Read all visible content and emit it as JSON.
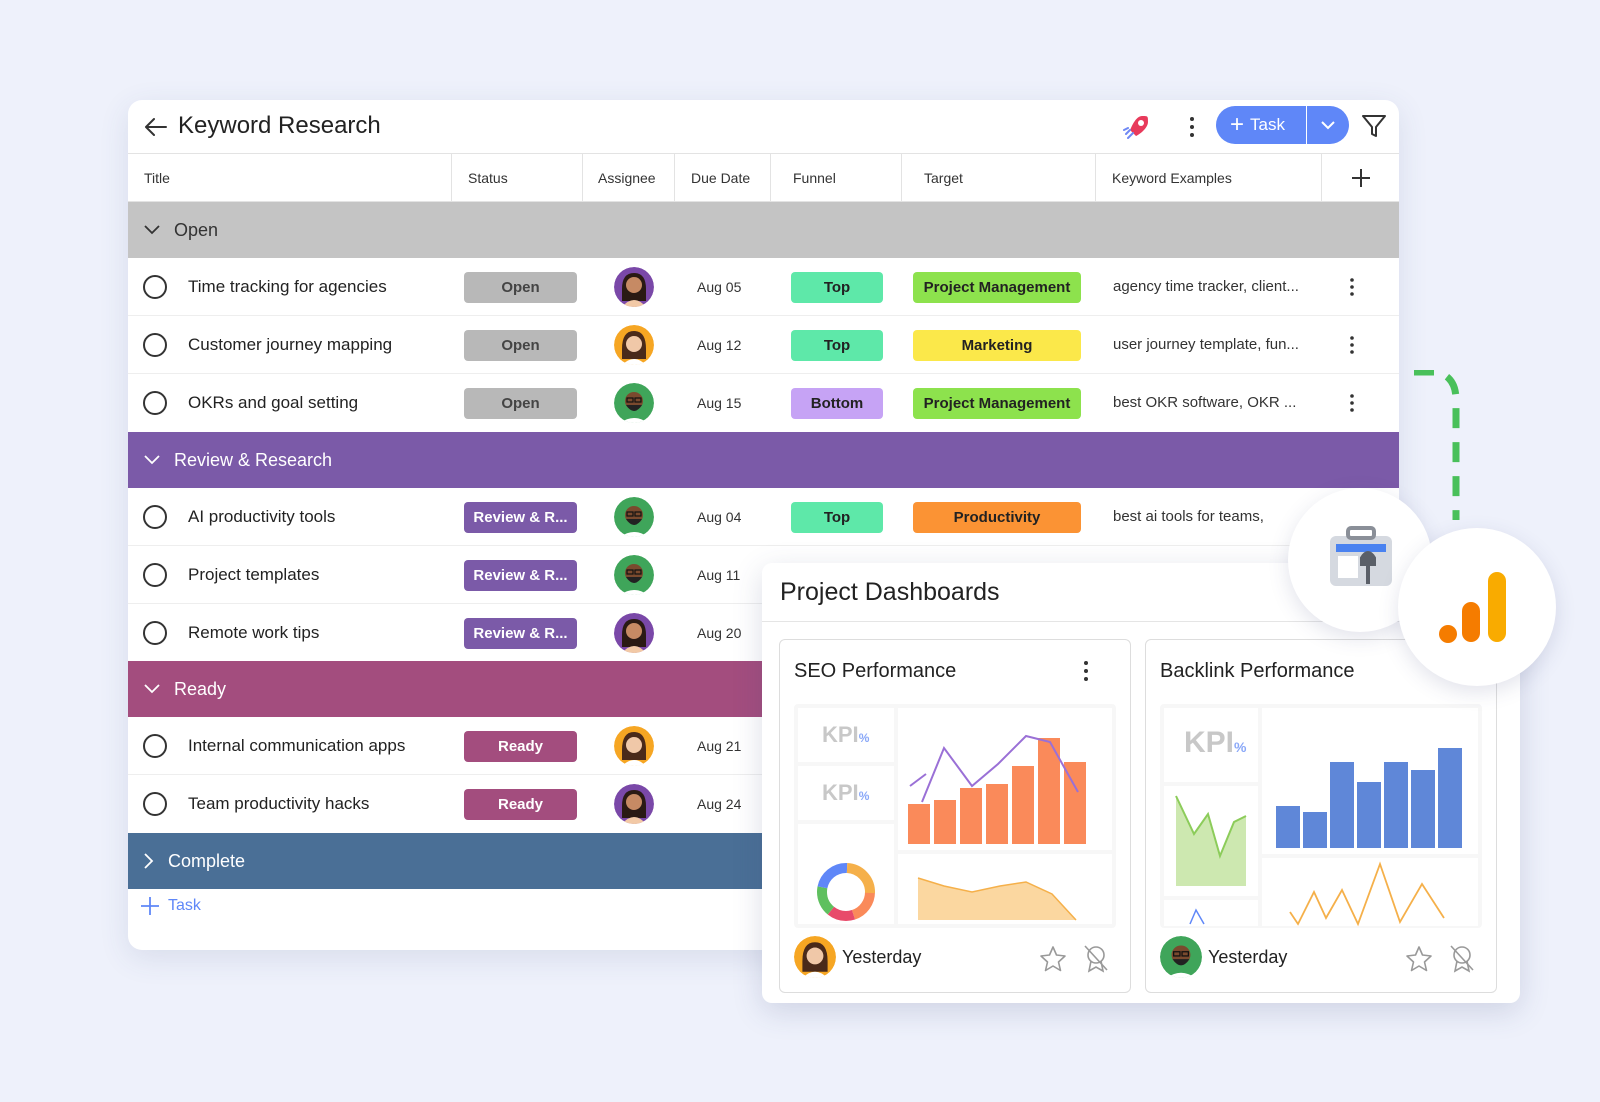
{
  "header": {
    "title": "Keyword Research",
    "add_task_label": "Task"
  },
  "columns": [
    "Title",
    "Status",
    "Assignee",
    "Due Date",
    "Funnel",
    "Target",
    "Keyword Examples"
  ],
  "groups": {
    "open": "Open",
    "review": "Review & Research",
    "ready": "Ready",
    "complete": "Complete"
  },
  "rows": [
    {
      "title": "Time tracking for agencies",
      "status": "Open",
      "due": "Aug 05",
      "funnel": "Top",
      "target": "Project Management",
      "keywords": "agency time tracker, client..."
    },
    {
      "title": "Customer journey mapping",
      "status": "Open",
      "due": "Aug 12",
      "funnel": "Top",
      "target": "Marketing",
      "keywords": "user journey template, fun..."
    },
    {
      "title": "OKRs and goal setting",
      "status": "Open",
      "due": "Aug 15",
      "funnel": "Bottom",
      "target": "Project Management",
      "keywords": "best OKR software, OKR ..."
    },
    {
      "title": "AI productivity tools",
      "status": "Review & R...",
      "due": "Aug 04",
      "funnel": "Top",
      "target": "Productivity",
      "keywords": "best ai tools for teams,"
    },
    {
      "title": "Project templates",
      "status": "Review & R...",
      "due": "Aug 11"
    },
    {
      "title": "Remote work tips",
      "status": "Review & R...",
      "due": "Aug 20"
    },
    {
      "title": "Internal communication apps",
      "status": "Ready",
      "due": "Aug 21"
    },
    {
      "title": "Team productivity hacks",
      "status": "Ready",
      "due": "Aug 24"
    }
  ],
  "footer": {
    "add_task_label": "Task"
  },
  "dashboards": {
    "title": "Project Dashboards",
    "widgets": [
      {
        "title": "SEO Performance",
        "updated": "Yesterday",
        "kpi1": "KPI",
        "kpi2": "KPI",
        "pct": "%"
      },
      {
        "title": "Backlink Performance",
        "updated": "Yesterday",
        "kpi1": "KPI",
        "pct": "%"
      }
    ]
  },
  "colors": {
    "accent": "#5f87f8",
    "open_group": "#c4c4c4",
    "review_group": "#7b5aa8",
    "ready_group": "#a34d7e",
    "complete_group": "#4a6f96",
    "status_open": "#b8b8b8",
    "status_review": "#7b5aa8",
    "status_ready": "#a34d7e",
    "funnel_top": "#5ee8a9",
    "funnel_bottom": "#c6a3f5",
    "target_pm": "#8de24d",
    "target_marketing": "#fbe84a",
    "target_productivity": "#fb9334"
  }
}
